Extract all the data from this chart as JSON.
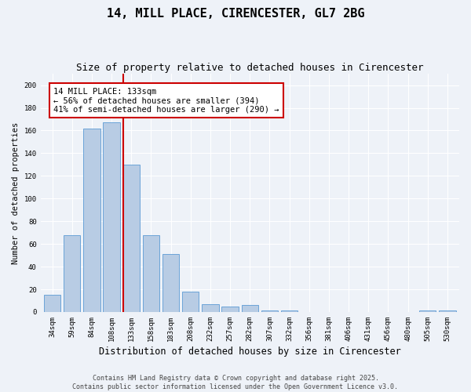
{
  "title": "14, MILL PLACE, CIRENCESTER, GL7 2BG",
  "subtitle": "Size of property relative to detached houses in Cirencester",
  "xlabel": "Distribution of detached houses by size in Cirencester",
  "ylabel": "Number of detached properties",
  "categories": [
    "34sqm",
    "59sqm",
    "84sqm",
    "108sqm",
    "133sqm",
    "158sqm",
    "183sqm",
    "208sqm",
    "232sqm",
    "257sqm",
    "282sqm",
    "307sqm",
    "332sqm",
    "356sqm",
    "381sqm",
    "406sqm",
    "431sqm",
    "456sqm",
    "480sqm",
    "505sqm",
    "530sqm"
  ],
  "values": [
    15,
    68,
    162,
    167,
    130,
    68,
    51,
    18,
    7,
    5,
    6,
    1,
    1,
    0,
    0,
    0,
    0,
    0,
    0,
    1,
    1
  ],
  "bar_color": "#b8cce4",
  "bar_edge_color": "#5b9bd5",
  "property_bin_index": 4,
  "vline_color": "#cc0000",
  "annotation_text": "14 MILL PLACE: 133sqm\n← 56% of detached houses are smaller (394)\n41% of semi-detached houses are larger (290) →",
  "annotation_box_color": "#ffffff",
  "annotation_box_edge": "#cc0000",
  "ylim": [
    0,
    210
  ],
  "yticks": [
    0,
    20,
    40,
    60,
    80,
    100,
    120,
    140,
    160,
    180,
    200
  ],
  "background_color": "#eef2f8",
  "footer": "Contains HM Land Registry data © Crown copyright and database right 2025.\nContains public sector information licensed under the Open Government Licence v3.0.",
  "title_fontsize": 11,
  "subtitle_fontsize": 9,
  "xlabel_fontsize": 8.5,
  "ylabel_fontsize": 7.5,
  "tick_fontsize": 6.5,
  "annotation_fontsize": 7.5,
  "footer_fontsize": 6
}
